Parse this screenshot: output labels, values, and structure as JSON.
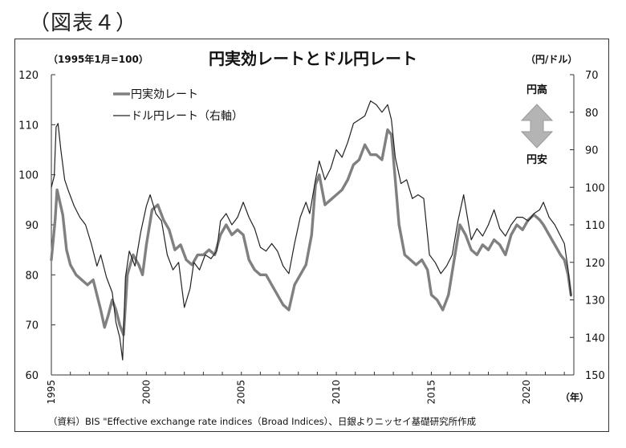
{
  "figure_label": "（図表４）",
  "source_note": "（資料）BIS \"Effective exchange rate indices（Broad Indices）、日銀よりニッセイ基礎研究所作成",
  "arrow_labels": {
    "up": "円高",
    "down": "円安"
  },
  "colors": {
    "reer": "#808080",
    "usdjpy": "#222222",
    "arrow_fill": "#b4b4b4"
  },
  "chart_data": {
    "type": "line",
    "title": "円実効レートとドル円レート",
    "left_unit": "（1995年1月=100）",
    "right_unit": "（円/ドル）",
    "x_unit": "（年）",
    "x_ticks": [
      "1995",
      "2000",
      "2005",
      "2010",
      "2015",
      "2020"
    ],
    "left_ticks": [
      "120",
      "110",
      "100",
      "90",
      "80",
      "70",
      "60"
    ],
    "right_ticks": [
      "70",
      "80",
      "90",
      "100",
      "110",
      "120",
      "130",
      "140",
      "150"
    ],
    "ylim_left": [
      60,
      120
    ],
    "ylim_right_inverted": [
      70,
      150
    ],
    "xlim": [
      1995,
      2022.5
    ],
    "grid": false,
    "legend_position": "top-left",
    "series": [
      {
        "name": "円実効レート",
        "axis": "left",
        "points": [
          [
            1995.0,
            83
          ],
          [
            1995.2,
            91
          ],
          [
            1995.3,
            97
          ],
          [
            1995.6,
            92
          ],
          [
            1995.8,
            85
          ],
          [
            1996.0,
            82
          ],
          [
            1996.3,
            80
          ],
          [
            1996.6,
            79
          ],
          [
            1996.9,
            78
          ],
          [
            1997.2,
            79
          ],
          [
            1997.4,
            76
          ],
          [
            1997.6,
            73
          ],
          [
            1997.8,
            69.5
          ],
          [
            1998.0,
            72
          ],
          [
            1998.2,
            75
          ],
          [
            1998.4,
            73
          ],
          [
            1998.6,
            70
          ],
          [
            1998.8,
            68
          ],
          [
            1999.0,
            80
          ],
          [
            1999.3,
            84
          ],
          [
            1999.6,
            82
          ],
          [
            1999.8,
            80
          ],
          [
            2000.0,
            86
          ],
          [
            2000.3,
            93
          ],
          [
            2000.6,
            94
          ],
          [
            2000.9,
            91
          ],
          [
            2001.2,
            89
          ],
          [
            2001.5,
            85
          ],
          [
            2001.8,
            86
          ],
          [
            2002.1,
            83
          ],
          [
            2002.4,
            82
          ],
          [
            2002.7,
            84
          ],
          [
            2003.0,
            84
          ],
          [
            2003.3,
            85
          ],
          [
            2003.6,
            84
          ],
          [
            2003.9,
            88
          ],
          [
            2004.2,
            90
          ],
          [
            2004.5,
            88
          ],
          [
            2004.8,
            89
          ],
          [
            2005.1,
            88
          ],
          [
            2005.4,
            83
          ],
          [
            2005.7,
            81
          ],
          [
            2006.0,
            80
          ],
          [
            2006.3,
            80
          ],
          [
            2006.6,
            78
          ],
          [
            2006.9,
            76
          ],
          [
            2007.2,
            74
          ],
          [
            2007.5,
            73
          ],
          [
            2007.8,
            78
          ],
          [
            2008.1,
            80
          ],
          [
            2008.4,
            82
          ],
          [
            2008.7,
            88
          ],
          [
            2008.9,
            98
          ],
          [
            2009.1,
            100
          ],
          [
            2009.4,
            94
          ],
          [
            2009.7,
            95
          ],
          [
            2010.0,
            96
          ],
          [
            2010.3,
            97
          ],
          [
            2010.6,
            99
          ],
          [
            2010.9,
            102
          ],
          [
            2011.2,
            103
          ],
          [
            2011.5,
            106
          ],
          [
            2011.8,
            104
          ],
          [
            2012.1,
            104
          ],
          [
            2012.4,
            103
          ],
          [
            2012.7,
            109
          ],
          [
            2012.9,
            108
          ],
          [
            2013.1,
            99
          ],
          [
            2013.3,
            90
          ],
          [
            2013.6,
            84
          ],
          [
            2013.9,
            83
          ],
          [
            2014.2,
            82
          ],
          [
            2014.5,
            83
          ],
          [
            2014.8,
            81
          ],
          [
            2015.0,
            76
          ],
          [
            2015.3,
            75
          ],
          [
            2015.6,
            73
          ],
          [
            2015.9,
            76
          ],
          [
            2016.2,
            83
          ],
          [
            2016.5,
            90
          ],
          [
            2016.8,
            88
          ],
          [
            2017.1,
            85
          ],
          [
            2017.4,
            84
          ],
          [
            2017.7,
            86
          ],
          [
            2018.0,
            85
          ],
          [
            2018.3,
            87
          ],
          [
            2018.6,
            86
          ],
          [
            2018.9,
            84
          ],
          [
            2019.2,
            88
          ],
          [
            2019.5,
            90
          ],
          [
            2019.8,
            89
          ],
          [
            2020.1,
            91
          ],
          [
            2020.4,
            92
          ],
          [
            2020.7,
            91
          ],
          [
            2020.9,
            90
          ],
          [
            2021.2,
            88
          ],
          [
            2021.5,
            86
          ],
          [
            2021.8,
            84
          ],
          [
            2022.0,
            83
          ],
          [
            2022.2,
            80
          ],
          [
            2022.35,
            76
          ]
        ]
      },
      {
        "name": "ドル円レート（右軸）",
        "axis": "right",
        "points": [
          [
            1995.0,
            100
          ],
          [
            1995.15,
            97
          ],
          [
            1995.25,
            84
          ],
          [
            1995.35,
            83
          ],
          [
            1995.5,
            90
          ],
          [
            1995.7,
            98
          ],
          [
            1995.9,
            101
          ],
          [
            1996.2,
            105
          ],
          [
            1996.5,
            108
          ],
          [
            1996.8,
            110
          ],
          [
            1997.1,
            115
          ],
          [
            1997.4,
            121
          ],
          [
            1997.6,
            118
          ],
          [
            1997.9,
            124
          ],
          [
            1998.2,
            128
          ],
          [
            1998.4,
            136
          ],
          [
            1998.6,
            140
          ],
          [
            1998.75,
            146
          ],
          [
            1998.9,
            124
          ],
          [
            1999.1,
            117
          ],
          [
            1999.4,
            121
          ],
          [
            1999.7,
            112
          ],
          [
            2000.0,
            105
          ],
          [
            2000.2,
            102
          ],
          [
            2000.5,
            107
          ],
          [
            2000.8,
            109
          ],
          [
            2001.1,
            118
          ],
          [
            2001.4,
            122
          ],
          [
            2001.7,
            120
          ],
          [
            2002.0,
            132
          ],
          [
            2002.3,
            127
          ],
          [
            2002.5,
            120
          ],
          [
            2002.8,
            122
          ],
          [
            2003.1,
            118
          ],
          [
            2003.4,
            119
          ],
          [
            2003.7,
            117
          ],
          [
            2003.9,
            109
          ],
          [
            2004.2,
            107
          ],
          [
            2004.5,
            110
          ],
          [
            2004.8,
            108
          ],
          [
            2005.1,
            104
          ],
          [
            2005.4,
            108
          ],
          [
            2005.7,
            111
          ],
          [
            2006.0,
            116
          ],
          [
            2006.3,
            117
          ],
          [
            2006.6,
            115
          ],
          [
            2006.9,
            117
          ],
          [
            2007.2,
            121
          ],
          [
            2007.5,
            123
          ],
          [
            2007.8,
            115
          ],
          [
            2008.1,
            108
          ],
          [
            2008.4,
            104
          ],
          [
            2008.6,
            107
          ],
          [
            2008.9,
            98
          ],
          [
            2009.1,
            93
          ],
          [
            2009.4,
            98
          ],
          [
            2009.7,
            95
          ],
          [
            2010.0,
            90
          ],
          [
            2010.3,
            92
          ],
          [
            2010.6,
            88
          ],
          [
            2010.9,
            83
          ],
          [
            2011.2,
            82
          ],
          [
            2011.5,
            81
          ],
          [
            2011.8,
            77
          ],
          [
            2012.1,
            78
          ],
          [
            2012.4,
            80
          ],
          [
            2012.7,
            78
          ],
          [
            2012.9,
            82
          ],
          [
            2013.1,
            92
          ],
          [
            2013.4,
            99
          ],
          [
            2013.7,
            98
          ],
          [
            2014.0,
            103
          ],
          [
            2014.3,
            102
          ],
          [
            2014.6,
            103
          ],
          [
            2014.9,
            118
          ],
          [
            2015.2,
            120
          ],
          [
            2015.5,
            123
          ],
          [
            2015.8,
            121
          ],
          [
            2016.1,
            118
          ],
          [
            2016.4,
            109
          ],
          [
            2016.7,
            102
          ],
          [
            2016.9,
            108
          ],
          [
            2017.1,
            114
          ],
          [
            2017.4,
            111
          ],
          [
            2017.7,
            113
          ],
          [
            2018.0,
            110
          ],
          [
            2018.3,
            106
          ],
          [
            2018.6,
            111
          ],
          [
            2018.9,
            113
          ],
          [
            2019.2,
            110
          ],
          [
            2019.5,
            108
          ],
          [
            2019.8,
            108
          ],
          [
            2020.1,
            109
          ],
          [
            2020.4,
            107
          ],
          [
            2020.7,
            106
          ],
          [
            2020.9,
            104
          ],
          [
            2021.2,
            108
          ],
          [
            2021.5,
            110
          ],
          [
            2021.8,
            113
          ],
          [
            2022.0,
            115
          ],
          [
            2022.2,
            122
          ],
          [
            2022.35,
            129
          ]
        ]
      }
    ]
  }
}
